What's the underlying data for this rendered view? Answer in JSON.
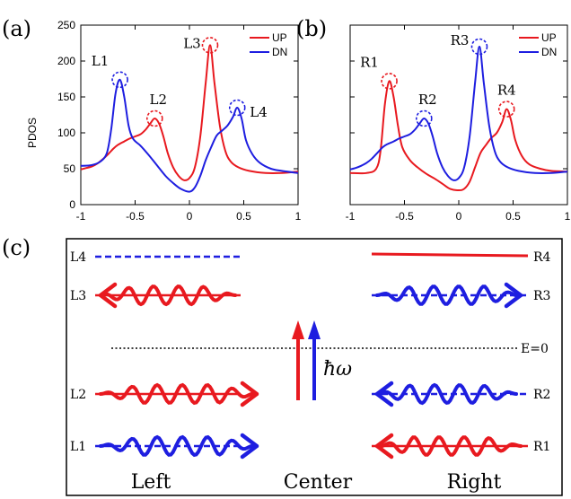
{
  "colors": {
    "up": "#e8191f",
    "dn": "#1e1ee0",
    "axis": "#000000",
    "ref": "#000000"
  },
  "chart_data": [
    {
      "type": "line",
      "panel_label": "(a)",
      "ylabel": "PDOS",
      "xlim": [
        -1,
        1
      ],
      "ylim": [
        0,
        250
      ],
      "xticks": [
        "-1",
        "-0.5",
        "0",
        "0.5",
        "1"
      ],
      "yticks": [
        "0",
        "50",
        "100",
        "150",
        "200",
        "250"
      ],
      "legend": {
        "placement": "top-right",
        "entries": [
          "UP",
          "DN"
        ]
      },
      "series": [
        {
          "name": "UP",
          "color": "#e8191f",
          "points": [
            [
              -1,
              49
            ],
            [
              -0.95,
              51
            ],
            [
              -0.9,
              53
            ],
            [
              -0.85,
              57
            ],
            [
              -0.8,
              63
            ],
            [
              -0.75,
              70
            ],
            [
              -0.7,
              78
            ],
            [
              -0.66,
              83
            ],
            [
              -0.6,
              88
            ],
            [
              -0.55,
              92
            ],
            [
              -0.5,
              95
            ],
            [
              -0.45,
              98
            ],
            [
              -0.4,
              105
            ],
            [
              -0.36,
              113
            ],
            [
              -0.32,
              120
            ],
            [
              -0.28,
              113
            ],
            [
              -0.24,
              95
            ],
            [
              -0.2,
              72
            ],
            [
              -0.15,
              52
            ],
            [
              -0.1,
              40
            ],
            [
              -0.05,
              34
            ],
            [
              0,
              37
            ],
            [
              0.05,
              52
            ],
            [
              0.1,
              95
            ],
            [
              0.15,
              170
            ],
            [
              0.19,
              222
            ],
            [
              0.23,
              170
            ],
            [
              0.28,
              110
            ],
            [
              0.33,
              75
            ],
            [
              0.38,
              60
            ],
            [
              0.45,
              52
            ],
            [
              0.55,
              47
            ],
            [
              0.7,
              44
            ],
            [
              0.85,
              44
            ],
            [
              1,
              46
            ]
          ]
        },
        {
          "name": "DN",
          "color": "#1e1ee0",
          "points": [
            [
              -1,
              54
            ],
            [
              -0.9,
              55
            ],
            [
              -0.82,
              60
            ],
            [
              -0.76,
              72
            ],
            [
              -0.72,
              105
            ],
            [
              -0.68,
              155
            ],
            [
              -0.64,
              174
            ],
            [
              -0.6,
              150
            ],
            [
              -0.56,
              110
            ],
            [
              -0.52,
              92
            ],
            [
              -0.45,
              82
            ],
            [
              -0.38,
              70
            ],
            [
              -0.3,
              55
            ],
            [
              -0.22,
              40
            ],
            [
              -0.15,
              30
            ],
            [
              -0.08,
              22
            ],
            [
              0,
              18
            ],
            [
              0.05,
              24
            ],
            [
              0.1,
              40
            ],
            [
              0.15,
              62
            ],
            [
              0.2,
              80
            ],
            [
              0.25,
              96
            ],
            [
              0.3,
              103
            ],
            [
              0.35,
              110
            ],
            [
              0.4,
              122
            ],
            [
              0.44,
              135
            ],
            [
              0.48,
              120
            ],
            [
              0.52,
              90
            ],
            [
              0.58,
              70
            ],
            [
              0.65,
              58
            ],
            [
              0.75,
              50
            ],
            [
              0.85,
              47
            ],
            [
              1,
              44
            ]
          ]
        }
      ],
      "annotations": [
        {
          "text": "L1",
          "x": -0.64,
          "y": 174,
          "circle_color": "#1e1ee0"
        },
        {
          "text": "L2",
          "x": -0.32,
          "y": 120,
          "circle_color": "#e8191f"
        },
        {
          "text": "L3",
          "x": 0.19,
          "y": 222,
          "circle_color": "#e8191f"
        },
        {
          "text": "L4",
          "x": 0.44,
          "y": 135,
          "circle_color": "#1e1ee0"
        }
      ]
    },
    {
      "type": "line",
      "panel_label": "(b)",
      "ylabel": "",
      "xlim": [
        -1,
        1
      ],
      "ylim": [
        0,
        250
      ],
      "xticks": [
        "-1",
        "-0.5",
        "0",
        "0.5",
        "1"
      ],
      "yticks": [],
      "legend": {
        "placement": "top-right",
        "entries": [
          "UP",
          "DN"
        ]
      },
      "series": [
        {
          "name": "UP",
          "color": "#e8191f",
          "points": [
            [
              -1,
              44
            ],
            [
              -0.85,
              44
            ],
            [
              -0.76,
              50
            ],
            [
              -0.72,
              75
            ],
            [
              -0.68,
              140
            ],
            [
              -0.64,
              172
            ],
            [
              -0.6,
              150
            ],
            [
              -0.56,
              110
            ],
            [
              -0.52,
              80
            ],
            [
              -0.45,
              62
            ],
            [
              -0.38,
              52
            ],
            [
              -0.3,
              43
            ],
            [
              -0.22,
              36
            ],
            [
              -0.15,
              29
            ],
            [
              -0.08,
              22
            ],
            [
              0,
              20
            ],
            [
              0.05,
              22
            ],
            [
              0.1,
              32
            ],
            [
              0.15,
              52
            ],
            [
              0.2,
              72
            ],
            [
              0.25,
              83
            ],
            [
              0.3,
              93
            ],
            [
              0.35,
              100
            ],
            [
              0.4,
              115
            ],
            [
              0.44,
              133
            ],
            [
              0.48,
              118
            ],
            [
              0.52,
              90
            ],
            [
              0.58,
              68
            ],
            [
              0.65,
              56
            ],
            [
              0.75,
              50
            ],
            [
              0.85,
              47
            ],
            [
              1,
              46
            ]
          ]
        },
        {
          "name": "DN",
          "color": "#1e1ee0",
          "points": [
            [
              -1,
              49
            ],
            [
              -0.95,
              51
            ],
            [
              -0.9,
              54
            ],
            [
              -0.85,
              58
            ],
            [
              -0.8,
              64
            ],
            [
              -0.75,
              72
            ],
            [
              -0.7,
              80
            ],
            [
              -0.66,
              84
            ],
            [
              -0.6,
              88
            ],
            [
              -0.55,
              92
            ],
            [
              -0.5,
              95
            ],
            [
              -0.45,
              98
            ],
            [
              -0.4,
              105
            ],
            [
              -0.36,
              113
            ],
            [
              -0.32,
              120
            ],
            [
              -0.28,
              113
            ],
            [
              -0.24,
              95
            ],
            [
              -0.2,
              72
            ],
            [
              -0.15,
              52
            ],
            [
              -0.1,
              40
            ],
            [
              -0.05,
              34
            ],
            [
              0,
              37
            ],
            [
              0.05,
              52
            ],
            [
              0.1,
              95
            ],
            [
              0.15,
              170
            ],
            [
              0.19,
              220
            ],
            [
              0.23,
              170
            ],
            [
              0.28,
              110
            ],
            [
              0.33,
              75
            ],
            [
              0.38,
              60
            ],
            [
              0.45,
              52
            ],
            [
              0.55,
              47
            ],
            [
              0.7,
              44
            ],
            [
              0.85,
              44
            ],
            [
              1,
              46
            ]
          ]
        }
      ],
      "annotations": [
        {
          "text": "R1",
          "x": -0.64,
          "y": 172,
          "circle_color": "#e8191f"
        },
        {
          "text": "R2",
          "x": -0.32,
          "y": 120,
          "circle_color": "#1e1ee0"
        },
        {
          "text": "R3",
          "x": 0.19,
          "y": 220,
          "circle_color": "#1e1ee0"
        },
        {
          "text": "R4",
          "x": 0.44,
          "y": 133,
          "circle_color": "#e8191f"
        }
      ]
    }
  ],
  "diagram": {
    "panel_label": "(c)",
    "left_labels": [
      "L4",
      "L3",
      "L2",
      "L1"
    ],
    "right_labels": [
      "R4",
      "R3",
      "R2",
      "R1"
    ],
    "fermi_label": "E=0",
    "photon_label": "ħω",
    "bottom_labels": {
      "left": "Left",
      "center": "Center",
      "right": "Right"
    }
  }
}
